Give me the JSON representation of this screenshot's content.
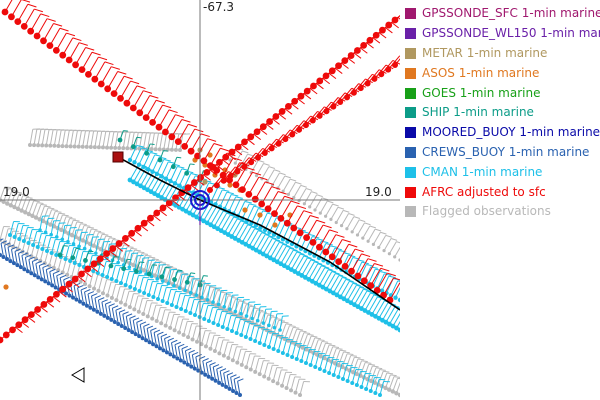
{
  "map": {
    "lon_label": "-67.3",
    "lat_label_left": "19.0",
    "lat_label_right": "19.0"
  },
  "legend": {
    "items": [
      {
        "label": "GPSSONDE_SFC 1-min marine",
        "color": "#a0186e"
      },
      {
        "label": "GPSSONDE_WL150 1-min marine",
        "color": "#6a20a8"
      },
      {
        "label": "METAR 1-min marine",
        "color": "#b09860"
      },
      {
        "label": "ASOS 1-min marine",
        "color": "#e07820"
      },
      {
        "label": "GOES 1-min marine",
        "color": "#18a018"
      },
      {
        "label": "SHIP 1-min marine",
        "color": "#0c9c88"
      },
      {
        "label": "MOORED_BUOY 1-min marine",
        "color": "#0a0aa8"
      },
      {
        "label": "CREWS_BUOY 1-min marine",
        "color": "#2a62b0"
      },
      {
        "label": "CMAN 1-min marine",
        "color": "#1ec0e8"
      },
      {
        "label": "AFRC adjusted to sfc",
        "color": "#ee0a0a"
      },
      {
        "label": "Flagged observations",
        "color": "#b8b8b8"
      }
    ]
  },
  "colors": {
    "afrc": "#ee0a0a",
    "cman": "#1ec0e8",
    "crews": "#2a62b0",
    "flagged": "#b8b8b8",
    "ship": "#0c9c88",
    "asos": "#e07820",
    "metar": "#b09860",
    "moored": "#0a0aa8",
    "gps_wl150": "#6a20a8",
    "gps_sfc": "#a0186e",
    "track": "#000000",
    "grid": "#777777",
    "storm_center": "#1a1ad0",
    "gps_sfc_marker": "#aa1010"
  }
}
